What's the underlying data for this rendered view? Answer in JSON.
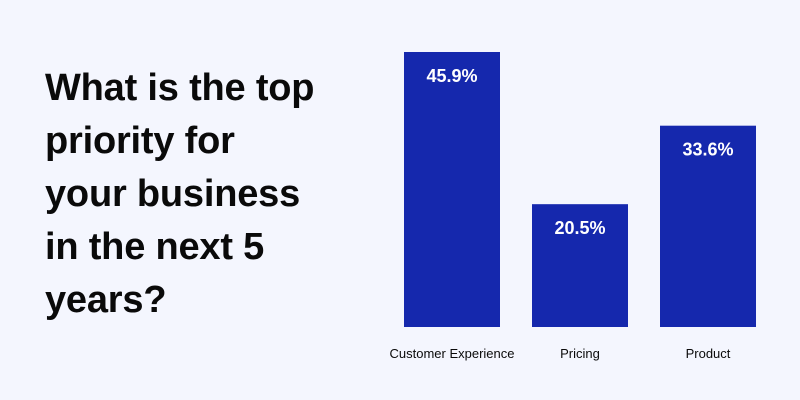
{
  "question": {
    "lines": [
      "What is the top",
      "priority for",
      "your business",
      "in the next 5",
      "years?"
    ]
  },
  "colors": {
    "background": "#f4f6fe",
    "bar": "#1528ad",
    "bar_label": "#ffffff",
    "text": "#0a0a0a"
  },
  "chart_data": {
    "type": "bar",
    "title": "What is the top priority for your business in the next 5 years?",
    "categories": [
      "Customer Experience",
      "Pricing",
      "Product"
    ],
    "values": [
      45.9,
      20.5,
      33.6
    ],
    "value_labels": [
      "45.9%",
      "20.5%",
      "33.6%"
    ],
    "unit": "%",
    "xlabel": "",
    "ylabel": "",
    "ylim": [
      0,
      45.9
    ],
    "grid": false,
    "legend": "none"
  }
}
